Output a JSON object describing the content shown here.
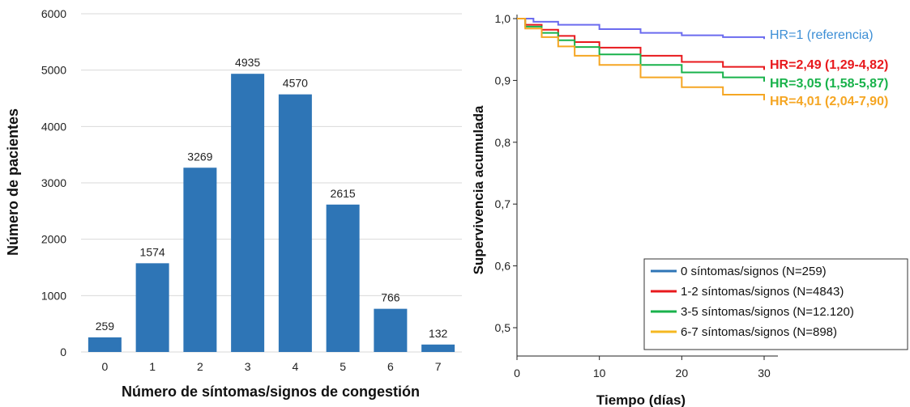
{
  "chart_data": [
    {
      "type": "bar",
      "xlabel": "Número de síntomas/signos de congestión",
      "ylabel": "Número de pacientes",
      "categories": [
        "0",
        "1",
        "2",
        "3",
        "4",
        "5",
        "6",
        "7"
      ],
      "values": [
        259,
        1574,
        3269,
        4935,
        4570,
        2615,
        766,
        132
      ],
      "value_labels": [
        "259",
        "1574",
        "3269",
        "4935",
        "4570",
        "2615",
        "766",
        "132"
      ],
      "ylim": [
        0,
        6000
      ],
      "yticks": [
        "0",
        "1000",
        "2000",
        "3000",
        "4000",
        "5000",
        "6000"
      ],
      "grid": true,
      "bar_color": "#2e75b6"
    },
    {
      "type": "line",
      "xlabel": "Tiempo (días)",
      "ylabel": "Supervivencia acumulada",
      "xlim": [
        0,
        30
      ],
      "ylim": [
        0.45,
        1.0
      ],
      "xticks": [
        "0",
        "10",
        "20",
        "30"
      ],
      "yticks": [
        "0,5",
        "0,6",
        "0,7",
        "0,8",
        "0,9",
        "1,0"
      ],
      "legend_position": "bottom-right",
      "series": [
        {
          "name": "0 síntomas/signos (N=259)",
          "color": "#2e75b6",
          "curve_color": "#6b6bef",
          "annotation": "HR=1 (referencia)",
          "annotation_color": "#3d8fd6",
          "x": [
            0,
            2,
            5,
            10,
            15,
            20,
            25,
            30
          ],
          "y": [
            1.0,
            0.995,
            0.99,
            0.983,
            0.977,
            0.973,
            0.97,
            0.967
          ]
        },
        {
          "name": "1-2 síntomas/signos (N=4843)",
          "color": "#e8191d",
          "curve_color": "#e8191d",
          "annotation": "HR=2,49 (1,29-4,82)",
          "annotation_color": "#e8191d",
          "x": [
            0,
            1,
            3,
            5,
            7,
            10,
            15,
            20,
            25,
            30
          ],
          "y": [
            1.0,
            0.99,
            0.982,
            0.972,
            0.962,
            0.953,
            0.94,
            0.93,
            0.922,
            0.917
          ]
        },
        {
          "name": "3-5 síntomas/signos (N=12.120)",
          "color": "#19b24b",
          "curve_color": "#19b24b",
          "annotation": "HR=3,05 (1,58-5,87)",
          "annotation_color": "#19b24b",
          "x": [
            0,
            1,
            3,
            5,
            7,
            10,
            15,
            20,
            25,
            30
          ],
          "y": [
            1.0,
            0.987,
            0.977,
            0.965,
            0.954,
            0.942,
            0.925,
            0.913,
            0.905,
            0.898
          ]
        },
        {
          "name": "6-7 síntomas/signos (N=898)",
          "color": "#f5b821",
          "curve_color": "#f5a623",
          "annotation": "HR=4,01 (2,04-7,90)",
          "annotation_color": "#f5a623",
          "x": [
            0,
            1,
            3,
            5,
            7,
            10,
            15,
            20,
            25,
            30
          ],
          "y": [
            1.0,
            0.984,
            0.97,
            0.955,
            0.94,
            0.925,
            0.905,
            0.889,
            0.877,
            0.868
          ]
        }
      ]
    }
  ]
}
